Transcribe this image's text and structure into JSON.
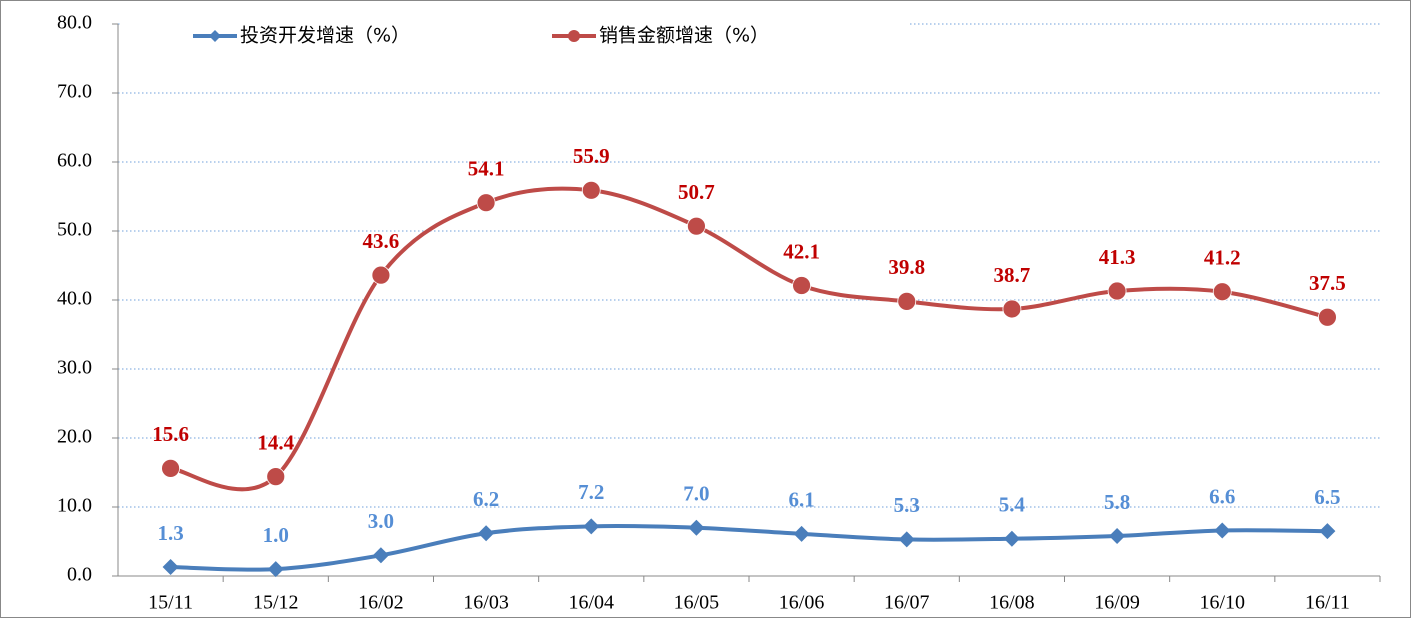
{
  "chart_data": {
    "type": "line",
    "categories": [
      "15/11",
      "15/12",
      "16/02",
      "16/03",
      "16/04",
      "16/05",
      "16/06",
      "16/07",
      "16/08",
      "16/09",
      "16/10",
      "16/11"
    ],
    "series": [
      {
        "name": "投资开发增速（%）",
        "color": "#4a7ebb",
        "label_color": "#558ed5",
        "marker": "diamond",
        "values": [
          1.3,
          1.0,
          3.0,
          6.2,
          7.2,
          7.0,
          6.1,
          5.3,
          5.4,
          5.8,
          6.6,
          6.5
        ],
        "value_labels": [
          "1.3",
          "1.0",
          "3.0",
          "6.2",
          "7.2",
          "7.0",
          "6.1",
          "5.3",
          "5.4",
          "5.8",
          "6.6",
          "6.5"
        ]
      },
      {
        "name": "销售金额增速（%）",
        "color": "#be4b48",
        "label_color": "#c00000",
        "marker": "circle",
        "values": [
          15.6,
          14.4,
          43.6,
          54.1,
          55.9,
          50.7,
          42.1,
          39.8,
          38.7,
          41.3,
          41.2,
          37.5
        ],
        "value_labels": [
          "15.6",
          "14.4",
          "43.6",
          "54.1",
          "55.9",
          "50.7",
          "42.1",
          "39.8",
          "38.7",
          "41.3",
          "41.2",
          "37.5"
        ]
      }
    ],
    "ylim": [
      0,
      80
    ],
    "yticks": [
      {
        "value": 0,
        "label": "0.0"
      },
      {
        "value": 10,
        "label": "10.0"
      },
      {
        "value": 20,
        "label": "20.0"
      },
      {
        "value": 30,
        "label": "30.0"
      },
      {
        "value": 40,
        "label": "40.0"
      },
      {
        "value": 50,
        "label": "50.0"
      },
      {
        "value": 60,
        "label": "60.0"
      },
      {
        "value": 70,
        "label": "70.0"
      },
      {
        "value": 80,
        "label": "80.0"
      }
    ],
    "grid": true,
    "smooth": true,
    "legend": "top"
  }
}
